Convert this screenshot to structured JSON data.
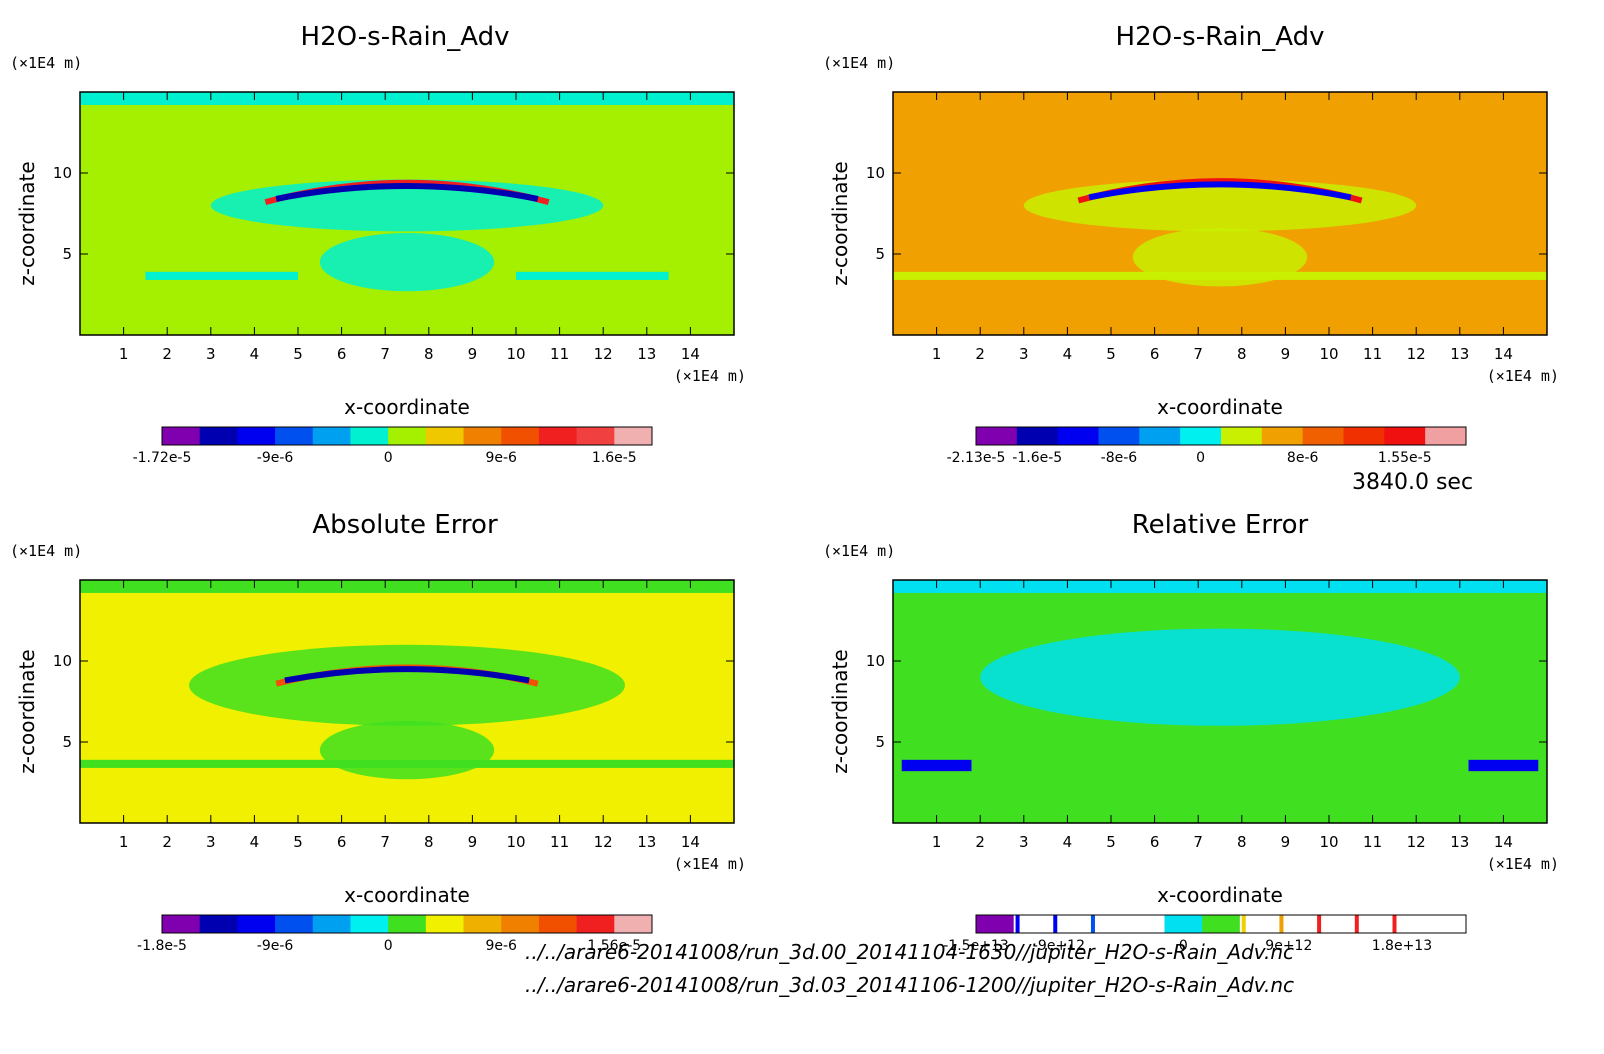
{
  "time_label": "3840.0 sec",
  "files": [
    "../../arare6-20141008/run_3d.00_20141104-1630//jupiter_H2O-s-Rain_Adv.nc",
    "../../arare6-20141008/run_3d.03_20141106-1200//jupiter_H2O-s-Rain_Adv.nc"
  ],
  "chart_data": [
    {
      "type": "heatmap",
      "title": "H2O-s-Rain_Adv",
      "xlabel": "x-coordinate",
      "ylabel": "z-coordinate",
      "x_unit": "(×1E4 m)",
      "y_unit": "(×1E4 m)",
      "xlim": [
        0,
        15
      ],
      "ylim": [
        0,
        15
      ],
      "x_ticks": [
        "1",
        "2",
        "3",
        "4",
        "5",
        "6",
        "7",
        "8",
        "9",
        "10",
        "11",
        "12",
        "13",
        "14"
      ],
      "y_ticks": [
        "5",
        "10"
      ],
      "background_color": "#a4f000",
      "colorbar_colors": [
        "#8000b0",
        "#0000b0",
        "#0000f0",
        "#0050f0",
        "#00a0f0",
        "#00f0d0",
        "#a4f000",
        "#f0c800",
        "#f08000",
        "#f05000",
        "#f02020",
        "#f04040",
        "#f0b0b0"
      ],
      "colorbar_labels": [
        {
          "text": "-1.72e-5",
          "pos": 0
        },
        {
          "text": "-9e-6",
          "pos": 3
        },
        {
          "text": "0",
          "pos": 6
        },
        {
          "text": "9e-6",
          "pos": 9
        },
        {
          "text": "1.6e-5",
          "pos": 12
        }
      ],
      "features": [
        {
          "shape": "band",
          "x": [
            0,
            15
          ],
          "z": [
            14.2,
            15
          ],
          "color": "#00f0d0"
        },
        {
          "shape": "blob",
          "cx": 7.5,
          "cz": 8.0,
          "rx": 4.5,
          "rz": 1.6,
          "color": "#00f0d0"
        },
        {
          "shape": "blob",
          "cx": 7.5,
          "cz": 4.5,
          "rx": 2.0,
          "rz": 1.8,
          "color": "#00f0d0"
        },
        {
          "shape": "band",
          "x": [
            1.5,
            5
          ],
          "z": [
            3.4,
            3.9
          ],
          "color": "#00f0d0"
        },
        {
          "shape": "band",
          "x": [
            10,
            13.5
          ],
          "z": [
            3.4,
            3.9
          ],
          "color": "#00f0d0"
        },
        {
          "shape": "arc",
          "cx": 7.5,
          "cz": 8.2,
          "w": 6.5,
          "h": 1.2,
          "color": "#f02020"
        },
        {
          "shape": "arc",
          "cx": 7.5,
          "cz": 8.4,
          "w": 6.0,
          "h": 0.8,
          "color": "#0000b0"
        }
      ]
    },
    {
      "type": "heatmap",
      "title": "H2O-s-Rain_Adv",
      "xlabel": "x-coordinate",
      "ylabel": "z-coordinate",
      "x_unit": "(×1E4 m)",
      "y_unit": "(×1E4 m)",
      "xlim": [
        0,
        15
      ],
      "ylim": [
        0,
        15
      ],
      "x_ticks": [
        "1",
        "2",
        "3",
        "4",
        "5",
        "6",
        "7",
        "8",
        "9",
        "10",
        "11",
        "12",
        "13",
        "14"
      ],
      "y_ticks": [
        "5",
        "10"
      ],
      "background_color": "#f0a000",
      "colorbar_colors": [
        "#8000b0",
        "#0000b0",
        "#0000f0",
        "#0050f0",
        "#00a0f0",
        "#00f0f0",
        "#c8f000",
        "#f0a000",
        "#f06000",
        "#f03000",
        "#f01010",
        "#f0a0a0"
      ],
      "colorbar_labels": [
        {
          "text": "-2.13e-5",
          "pos": 0
        },
        {
          "text": "-1.6e-5",
          "pos": 1.5
        },
        {
          "text": "-8e-6",
          "pos": 3.5
        },
        {
          "text": "0",
          "pos": 5.5
        },
        {
          "text": "8e-6",
          "pos": 8
        },
        {
          "text": "1.55e-5",
          "pos": 10.5
        }
      ],
      "features": [
        {
          "shape": "blob",
          "cx": 7.5,
          "cz": 8.0,
          "rx": 4.5,
          "rz": 1.6,
          "color": "#c8f000"
        },
        {
          "shape": "blob",
          "cx": 7.5,
          "cz": 4.8,
          "rx": 2.0,
          "rz": 1.8,
          "color": "#c8f000"
        },
        {
          "shape": "band",
          "x": [
            0,
            15
          ],
          "z": [
            3.4,
            3.9
          ],
          "color": "#c8f000"
        },
        {
          "shape": "arc",
          "cx": 7.5,
          "cz": 8.3,
          "w": 6.5,
          "h": 1.2,
          "color": "#f01010"
        },
        {
          "shape": "arc",
          "cx": 7.5,
          "cz": 8.5,
          "w": 6.0,
          "h": 0.8,
          "color": "#0000f0"
        }
      ]
    },
    {
      "type": "heatmap",
      "title": "Absolute Error",
      "xlabel": "x-coordinate",
      "ylabel": "z-coordinate",
      "x_unit": "(×1E4 m)",
      "y_unit": "(×1E4 m)",
      "xlim": [
        0,
        15
      ],
      "ylim": [
        0,
        15
      ],
      "x_ticks": [
        "1",
        "2",
        "3",
        "4",
        "5",
        "6",
        "7",
        "8",
        "9",
        "10",
        "11",
        "12",
        "13",
        "14"
      ],
      "y_ticks": [
        "5",
        "10"
      ],
      "background_color": "#f0f000",
      "colorbar_colors": [
        "#8000b0",
        "#0000b0",
        "#0000f0",
        "#0050f0",
        "#00a0f0",
        "#00f0f0",
        "#40e020",
        "#f0f000",
        "#f0b000",
        "#f08000",
        "#f05000",
        "#f02020",
        "#f0b0b0"
      ],
      "colorbar_labels": [
        {
          "text": "-1.8e-5",
          "pos": 0
        },
        {
          "text": "-9e-6",
          "pos": 3
        },
        {
          "text": "0",
          "pos": 6
        },
        {
          "text": "9e-6",
          "pos": 9
        },
        {
          "text": "1.56e-5",
          "pos": 12
        }
      ],
      "features": [
        {
          "shape": "band",
          "x": [
            0,
            15
          ],
          "z": [
            14.2,
            15
          ],
          "color": "#40e020"
        },
        {
          "shape": "blob",
          "cx": 7.5,
          "cz": 8.5,
          "rx": 5.0,
          "rz": 2.5,
          "color": "#40e020"
        },
        {
          "shape": "blob",
          "cx": 7.5,
          "cz": 4.5,
          "rx": 2.0,
          "rz": 1.8,
          "color": "#40e020"
        },
        {
          "shape": "band",
          "x": [
            0,
            15
          ],
          "z": [
            3.4,
            3.9
          ],
          "color": "#40e020"
        },
        {
          "shape": "arc",
          "cx": 7.5,
          "cz": 8.6,
          "w": 6.0,
          "h": 1.0,
          "color": "#f05000"
        },
        {
          "shape": "arc",
          "cx": 7.5,
          "cz": 8.8,
          "w": 5.6,
          "h": 0.7,
          "color": "#0000b0"
        }
      ]
    },
    {
      "type": "heatmap",
      "title": "Relative Error",
      "xlabel": "x-coordinate",
      "ylabel": "z-coordinate",
      "x_unit": "(×1E4 m)",
      "y_unit": "(×1E4 m)",
      "xlim": [
        0,
        15
      ],
      "ylim": [
        0,
        15
      ],
      "x_ticks": [
        "1",
        "2",
        "3",
        "4",
        "5",
        "6",
        "7",
        "8",
        "9",
        "10",
        "11",
        "12",
        "13",
        "14"
      ],
      "y_ticks": [
        "5",
        "10"
      ],
      "background_color": "#40e020",
      "colorbar_colors": [
        "#8000b0",
        "#ffffff",
        "#ffffff",
        "#ffffff",
        "#ffffff",
        "#00e0f0",
        "#40e020",
        "#ffffff",
        "#ffffff",
        "#ffffff",
        "#ffffff",
        "#ffffff",
        "#ffffff"
      ],
      "colorbar_line_colors": [
        {
          "pos": 1.05,
          "color": "#0000f0"
        },
        {
          "pos": 2.05,
          "color": "#0000f0"
        },
        {
          "pos": 3.05,
          "color": "#0050f0"
        },
        {
          "pos": 7.05,
          "color": "#f0d000"
        },
        {
          "pos": 8.05,
          "color": "#f0a000"
        },
        {
          "pos": 9.05,
          "color": "#f02020"
        },
        {
          "pos": 10.05,
          "color": "#f02020"
        },
        {
          "pos": 11.05,
          "color": "#f02020"
        }
      ],
      "colorbar_labels": [
        {
          "text": "-1.5e+13",
          "pos": 0
        },
        {
          "text": "-9e+12",
          "pos": 2.2
        },
        {
          "text": "0",
          "pos": 5.5
        },
        {
          "text": "9e+12",
          "pos": 8.3
        },
        {
          "text": "1.8e+13",
          "pos": 11.3
        }
      ],
      "features": [
        {
          "shape": "band",
          "x": [
            0,
            15
          ],
          "z": [
            14.2,
            15
          ],
          "color": "#00e0f0"
        },
        {
          "shape": "blob",
          "cx": 7.5,
          "cz": 9.0,
          "rx": 5.5,
          "rz": 3.0,
          "color": "#00e0f0"
        },
        {
          "shape": "band",
          "x": [
            0.2,
            1.8
          ],
          "z": [
            3.2,
            3.9
          ],
          "color": "#0000f0"
        },
        {
          "shape": "band",
          "x": [
            13.2,
            14.8
          ],
          "z": [
            3.2,
            3.9
          ],
          "color": "#0000f0"
        }
      ]
    }
  ]
}
